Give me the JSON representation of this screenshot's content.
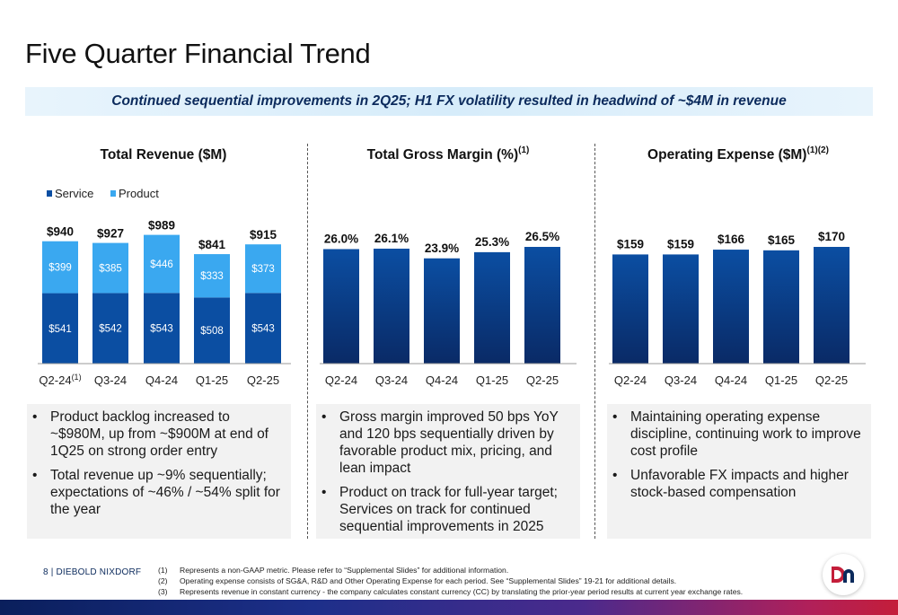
{
  "title": "Five Quarter Financial Trend",
  "banner": "Continued sequential improvements in 2Q25; H1 FX volatility resulted in headwind of ~$4M in revenue",
  "colors": {
    "service": "#0b4ea2",
    "product": "#3aa8f0",
    "bar": "#0b4ea2",
    "bar_dark": "#0a2a66",
    "banner_text": "#0b2a5c"
  },
  "panels": [
    {
      "title": "Total Revenue ($M)",
      "title_sup": "",
      "bullets": [
        "Product backlog increased to ~$980M, up from ~$900M at end of 1Q25 on strong order entry",
        "Total revenue up ~9% sequentially; expectations of ~46% / ~54% split for the year"
      ]
    },
    {
      "title": "Total Gross Margin (%)",
      "title_sup": "(1)",
      "bullets": [
        "Gross margin improved 50 bps YoY and 120 bps sequentially driven by favorable product mix, pricing, and lean impact",
        "Product on track for full-year target; Services on track for continued sequential improvements in 2025"
      ]
    },
    {
      "title": "Operating Expense ($M)",
      "title_sup": "(1)(2)",
      "bullets": [
        "Maintaining operating expense discipline, continuing work to improve cost profile",
        "Unfavorable FX impacts and higher stock-based compensation"
      ]
    }
  ],
  "chart_data": [
    {
      "type": "bar",
      "stacked": true,
      "categories": [
        "Q2-24",
        "Q3-24",
        "Q4-24",
        "Q1-25",
        "Q2-25"
      ],
      "category_notes": [
        "(1)",
        "",
        "",
        "",
        ""
      ],
      "series": [
        {
          "name": "Service",
          "values": [
            541,
            542,
            543,
            508,
            543
          ],
          "labels": [
            "$541",
            "$542",
            "$543",
            "$508",
            "$543"
          ]
        },
        {
          "name": "Product",
          "values": [
            399,
            385,
            446,
            333,
            373
          ],
          "labels": [
            "$399",
            "$385",
            "$446",
            "$333",
            "$373"
          ]
        }
      ],
      "totals": [
        940,
        927,
        989,
        841,
        915
      ],
      "total_labels": [
        "$940",
        "$927",
        "$989",
        "$841",
        "$915"
      ],
      "legend": "top-left",
      "ylim": [
        0,
        1000
      ]
    },
    {
      "type": "bar",
      "categories": [
        "Q2-24",
        "Q3-24",
        "Q4-24",
        "Q1-25",
        "Q2-25"
      ],
      "values": [
        26.0,
        26.1,
        23.9,
        25.3,
        26.5
      ],
      "labels": [
        "26.0%",
        "26.1%",
        "23.9%",
        "25.3%",
        "26.5%"
      ],
      "ylim": [
        0,
        26.5
      ]
    },
    {
      "type": "bar",
      "categories": [
        "Q2-24",
        "Q3-24",
        "Q4-24",
        "Q1-25",
        "Q2-25"
      ],
      "values": [
        159,
        159,
        166,
        165,
        170
      ],
      "labels": [
        "$159",
        "$159",
        "$166",
        "$165",
        "$170"
      ],
      "ylim": [
        0,
        170
      ]
    }
  ],
  "footer": {
    "page": "8  |  DIEBOLD NIXDORF",
    "footnotes": [
      {
        "num": "(1)",
        "text": "Represents a non-GAAP metric.  Please refer to “Supplemental Slides” for additional information."
      },
      {
        "num": "(2)",
        "text": "Operating expense consists of SG&A, R&D and Other Operating Expense for each period. See “Supplemental Slides” 19-21 for additional details."
      },
      {
        "num": "(3)",
        "text": "Represents revenue in constant currency - the company calculates constant currency (CC) by translating the prior-year period results at current year exchange rates."
      }
    ],
    "logo_text": "DN"
  }
}
